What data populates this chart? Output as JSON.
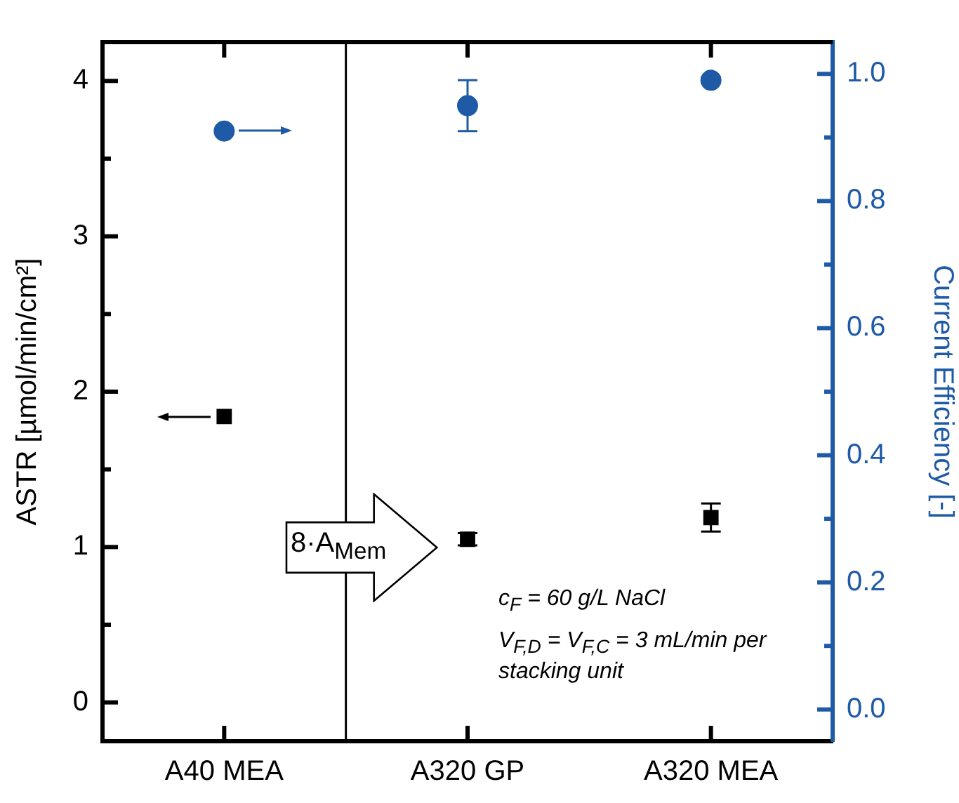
{
  "chart_data": {
    "type": "scatter",
    "categories": [
      "A40 MEA",
      "A320 GP",
      "A320 MEA"
    ],
    "series": [
      {
        "color": "#000000",
        "marker": "square",
        "values": [
          1.84,
          1.05,
          1.19
        ],
        "errors": [
          null,
          0.04,
          0.09
        ]
      },
      {
        "color": "#1f5aa6",
        "marker": "circle",
        "axis": "y2",
        "values": [
          0.91,
          0.95,
          0.99
        ],
        "errors": [
          null,
          0.04,
          0.005
        ]
      }
    ],
    "ylabel": "ASTR [µmol/min/cm²]",
    "y2label": "Current Efficiency [-]",
    "ylim": [
      -0.25,
      4.25
    ],
    "yticks": [
      0,
      {
        "value": 0.5,
        "label": null
      },
      1,
      {
        "value": 1.5,
        "label": null
      },
      2,
      {
        "value": 2.5,
        "label": null
      },
      3,
      {
        "value": 3.5,
        "label": null
      },
      4
    ],
    "y2lim": [
      -0.05,
      1.05
    ],
    "y2ticks": [
      {
        "value": 0,
        "label": "0.0"
      },
      {
        "value": 0.1,
        "label": null
      },
      0.2,
      {
        "value": 0.3,
        "label": null
      },
      0.4,
      {
        "value": 0.5,
        "label": null
      },
      0.6,
      {
        "value": 0.7,
        "label": null
      },
      0.8,
      {
        "value": 0.9,
        "label": null
      },
      {
        "value": 1,
        "label": "1.0"
      }
    ],
    "annotations": [
      "8·A$_{Mem}$",
      "c$_{F}$ = 60 g/L NaCl",
      "V$_{F,D}$ = V$_{F,C}$ = 3 mL/min per stacking unit"
    ]
  }
}
